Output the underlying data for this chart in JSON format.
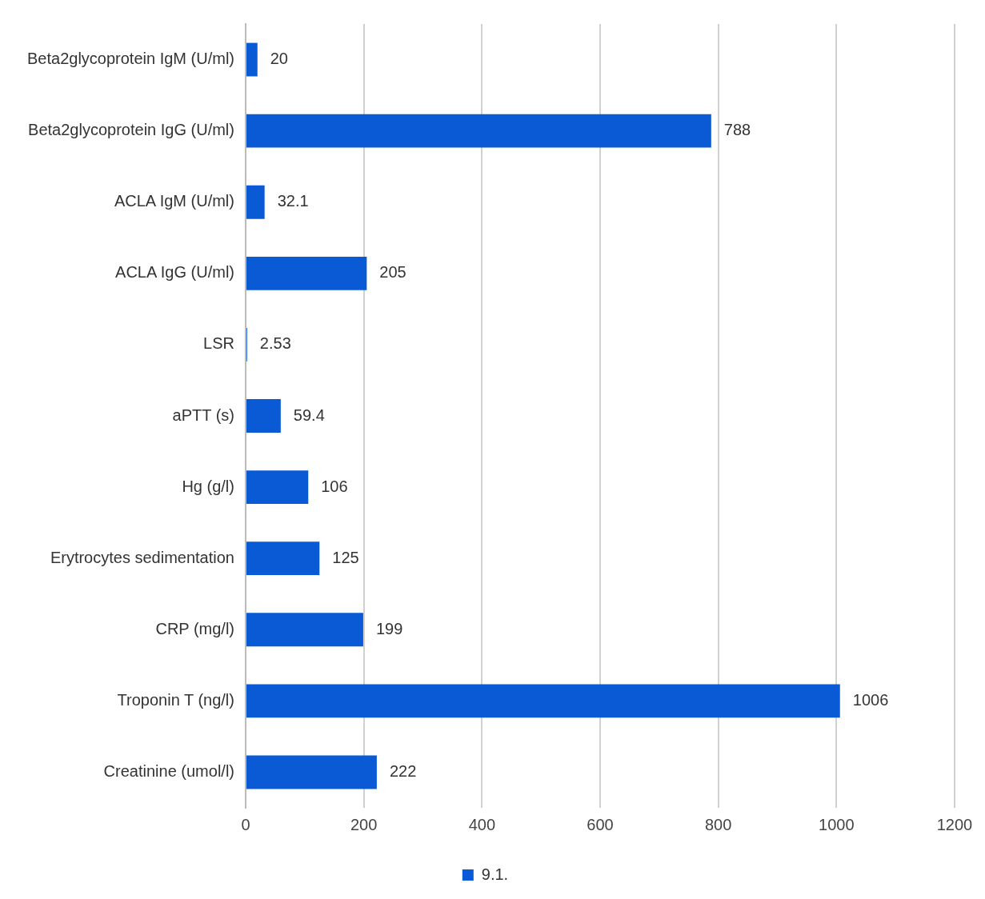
{
  "chart_data": {
    "type": "bar",
    "orientation": "horizontal",
    "categories": [
      "Beta2glycoprotein IgM (U/ml)",
      "Beta2glycoprotein IgG (U/ml)",
      "ACLA IgM (U/ml)",
      "ACLA IgG (U/ml)",
      "LSR",
      "aPTT (s)",
      "Hg (g/l)",
      "Erytrocytes sedimentation",
      "CRP (mg/l)",
      "Troponin T (ng/l)",
      "Creatinine (umol/l)"
    ],
    "series": [
      {
        "name": "9.1.",
        "color": "#0a5ad6",
        "values": [
          20,
          788,
          32.1,
          205,
          2.53,
          59.4,
          106,
          125,
          199,
          1006,
          222
        ]
      }
    ],
    "xlim": [
      0,
      1200
    ],
    "xticks": [
      0,
      200,
      400,
      600,
      800,
      1000,
      1200
    ],
    "grid": "x",
    "legend": "bottom",
    "data_labels": true
  }
}
